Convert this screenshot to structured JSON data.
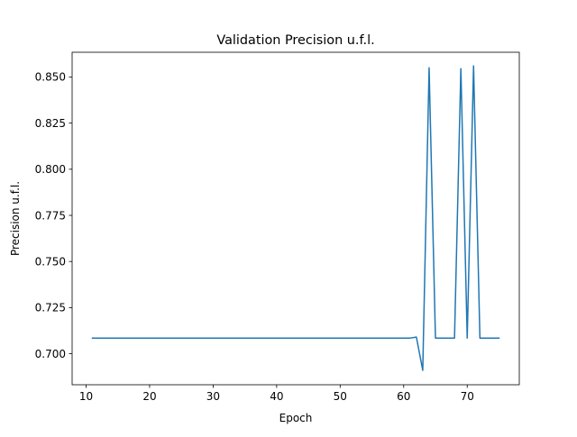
{
  "chart_data": {
    "type": "line",
    "title": "Validation Precision u.f.l.",
    "xlabel": "Epoch",
    "ylabel": "Precision u.f.l.",
    "xlim": [
      7.8,
      78.2
    ],
    "ylim": [
      0.6832,
      0.8634
    ],
    "xticks": [
      10,
      20,
      30,
      40,
      50,
      60,
      70
    ],
    "yticks": [
      0.7,
      0.725,
      0.75,
      0.775,
      0.8,
      0.825,
      0.85
    ],
    "ytick_labels": [
      "0.700",
      "0.725",
      "0.750",
      "0.775",
      "0.800",
      "0.825",
      "0.850"
    ],
    "grid": false,
    "series": [
      {
        "color": "#1f77b4",
        "x": [
          11,
          12,
          13,
          14,
          15,
          16,
          17,
          18,
          19,
          20,
          21,
          22,
          23,
          24,
          25,
          26,
          27,
          28,
          29,
          30,
          31,
          32,
          33,
          34,
          35,
          36,
          37,
          38,
          39,
          40,
          41,
          42,
          43,
          44,
          45,
          46,
          47,
          48,
          49,
          50,
          51,
          52,
          53,
          54,
          55,
          56,
          57,
          58,
          59,
          60,
          61,
          62,
          63,
          64,
          65,
          66,
          67,
          68,
          69,
          70,
          71,
          72,
          73,
          74,
          75
        ],
        "y": [
          0.7085,
          0.7085,
          0.7085,
          0.7085,
          0.7085,
          0.7085,
          0.7085,
          0.7085,
          0.7085,
          0.7085,
          0.7085,
          0.7085,
          0.7085,
          0.7085,
          0.7085,
          0.7085,
          0.7085,
          0.7085,
          0.7085,
          0.7085,
          0.7085,
          0.7085,
          0.7085,
          0.7085,
          0.7085,
          0.7085,
          0.7085,
          0.7085,
          0.7085,
          0.7085,
          0.7085,
          0.7085,
          0.7085,
          0.7085,
          0.7085,
          0.7085,
          0.7085,
          0.7085,
          0.7085,
          0.7085,
          0.7085,
          0.7085,
          0.7085,
          0.7085,
          0.7085,
          0.7085,
          0.7085,
          0.7085,
          0.7085,
          0.7085,
          0.7085,
          0.709,
          0.691,
          0.855,
          0.7085,
          0.7085,
          0.7085,
          0.7085,
          0.8545,
          0.7085,
          0.856,
          0.7085,
          0.7085,
          0.7085,
          0.7085
        ]
      }
    ]
  }
}
